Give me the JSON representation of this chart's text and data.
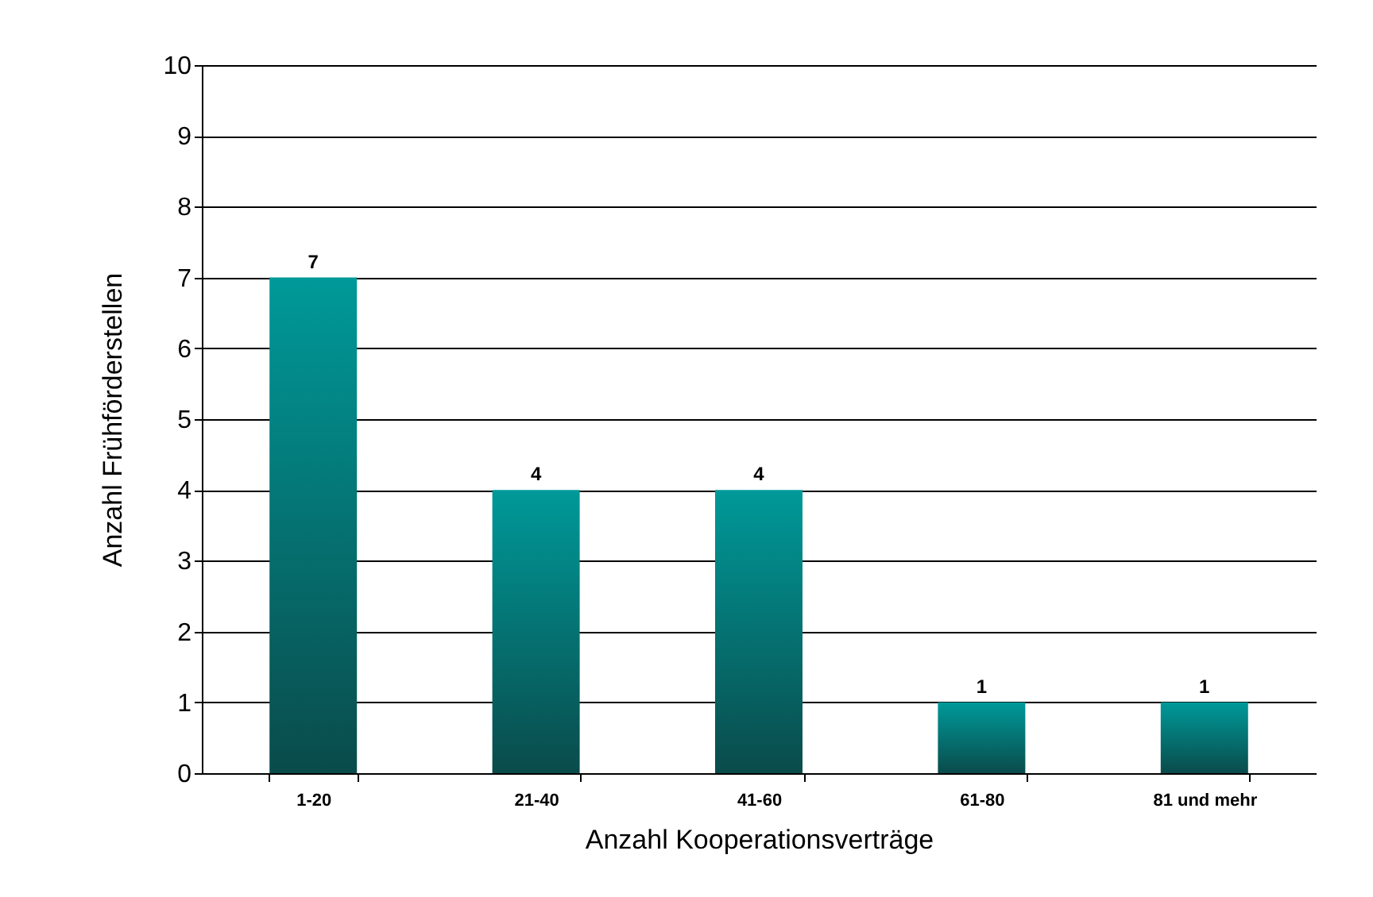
{
  "chart_data": {
    "type": "bar",
    "categories": [
      "1-20",
      "21-40",
      "41-60",
      "61-80",
      "81 und mehr"
    ],
    "values": [
      7,
      4,
      4,
      1,
      1
    ],
    "color": "#009999",
    "xlabel": "Anzahl Kooperationsverträge",
    "ylabel": "Anzahl Frühförderstellen",
    "ylim": [
      0,
      10
    ],
    "yticks": [
      0,
      1,
      2,
      3,
      4,
      5,
      6,
      7,
      8,
      9,
      10
    ],
    "grid": "y",
    "data_labels": true
  }
}
